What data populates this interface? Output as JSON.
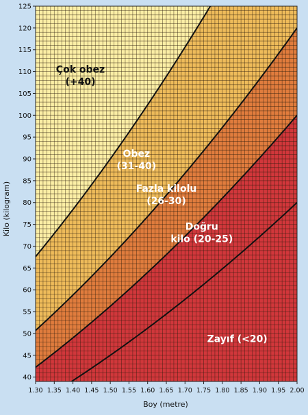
{
  "chart_data": {
    "type": "area",
    "title": "",
    "xlabel": "Boy (metre)",
    "ylabel": "Kilo (kilogram)",
    "xlim": [
      1.3,
      2.0
    ],
    "ylim": [
      39,
      125
    ],
    "x_ticks": [
      1.3,
      1.35,
      1.4,
      1.45,
      1.5,
      1.55,
      1.6,
      1.65,
      1.7,
      1.75,
      1.8,
      1.85,
      1.9,
      1.95,
      2.0
    ],
    "x_tick_labels": [
      "1.30",
      "1.35",
      "1.40",
      "1.45",
      "1.50",
      "1.55",
      "1.60",
      "1.65",
      "1.70",
      "1.75",
      "1.80",
      "1.85",
      "1.90",
      "1.95",
      "2.00"
    ],
    "y_ticks": [
      40,
      45,
      50,
      55,
      60,
      65,
      70,
      75,
      80,
      85,
      90,
      95,
      100,
      105,
      110,
      115,
      120,
      125
    ],
    "y_tick_labels": [
      "40",
      "45",
      "50",
      "55",
      "60",
      "65",
      "70",
      "75",
      "80",
      "85",
      "90",
      "95",
      "100",
      "105",
      "110",
      "115",
      "120",
      "125"
    ],
    "x_minor_step": 0.01,
    "y_minor_step": 1,
    "grid": true,
    "boundaries": [
      {
        "bmi": 20
      },
      {
        "bmi": 25
      },
      {
        "bmi": 30
      },
      {
        "bmi": 40
      }
    ],
    "regions": [
      {
        "name": "Zayıf (<20)",
        "label_lines": [
          "Zayıf (<20)"
        ],
        "color": "#d1373b",
        "label_color": "#ffffff",
        "label_at": [
          1.84,
          48
        ]
      },
      {
        "name": "Doğru kilo (20-25)",
        "label_lines": [
          "Doğru",
          "kilo (20-25)"
        ],
        "color": "#d1373b",
        "label_color": "#ffffff",
        "label_at": [
          1.745,
          73.8
        ]
      },
      {
        "name": "Fazla kilolu (26-30)",
        "label_lines": [
          "Fazla kilolu",
          "(26-30)"
        ],
        "color": "#e07c3d",
        "label_color": "#ffffff",
        "label_at": [
          1.65,
          82.5
        ]
      },
      {
        "name": "Obez (31-40)",
        "label_lines": [
          "Obez",
          "(31-40)"
        ],
        "color": "#eebb5a",
        "label_color": "#ffffff",
        "label_at": [
          1.57,
          90.5
        ]
      },
      {
        "name": "Çok obez (+40)",
        "label_lines": [
          "Çok obez",
          "(+40)"
        ],
        "color": "#fbeea5",
        "label_color": "#111111",
        "label_at": [
          1.42,
          109.8
        ]
      }
    ]
  }
}
